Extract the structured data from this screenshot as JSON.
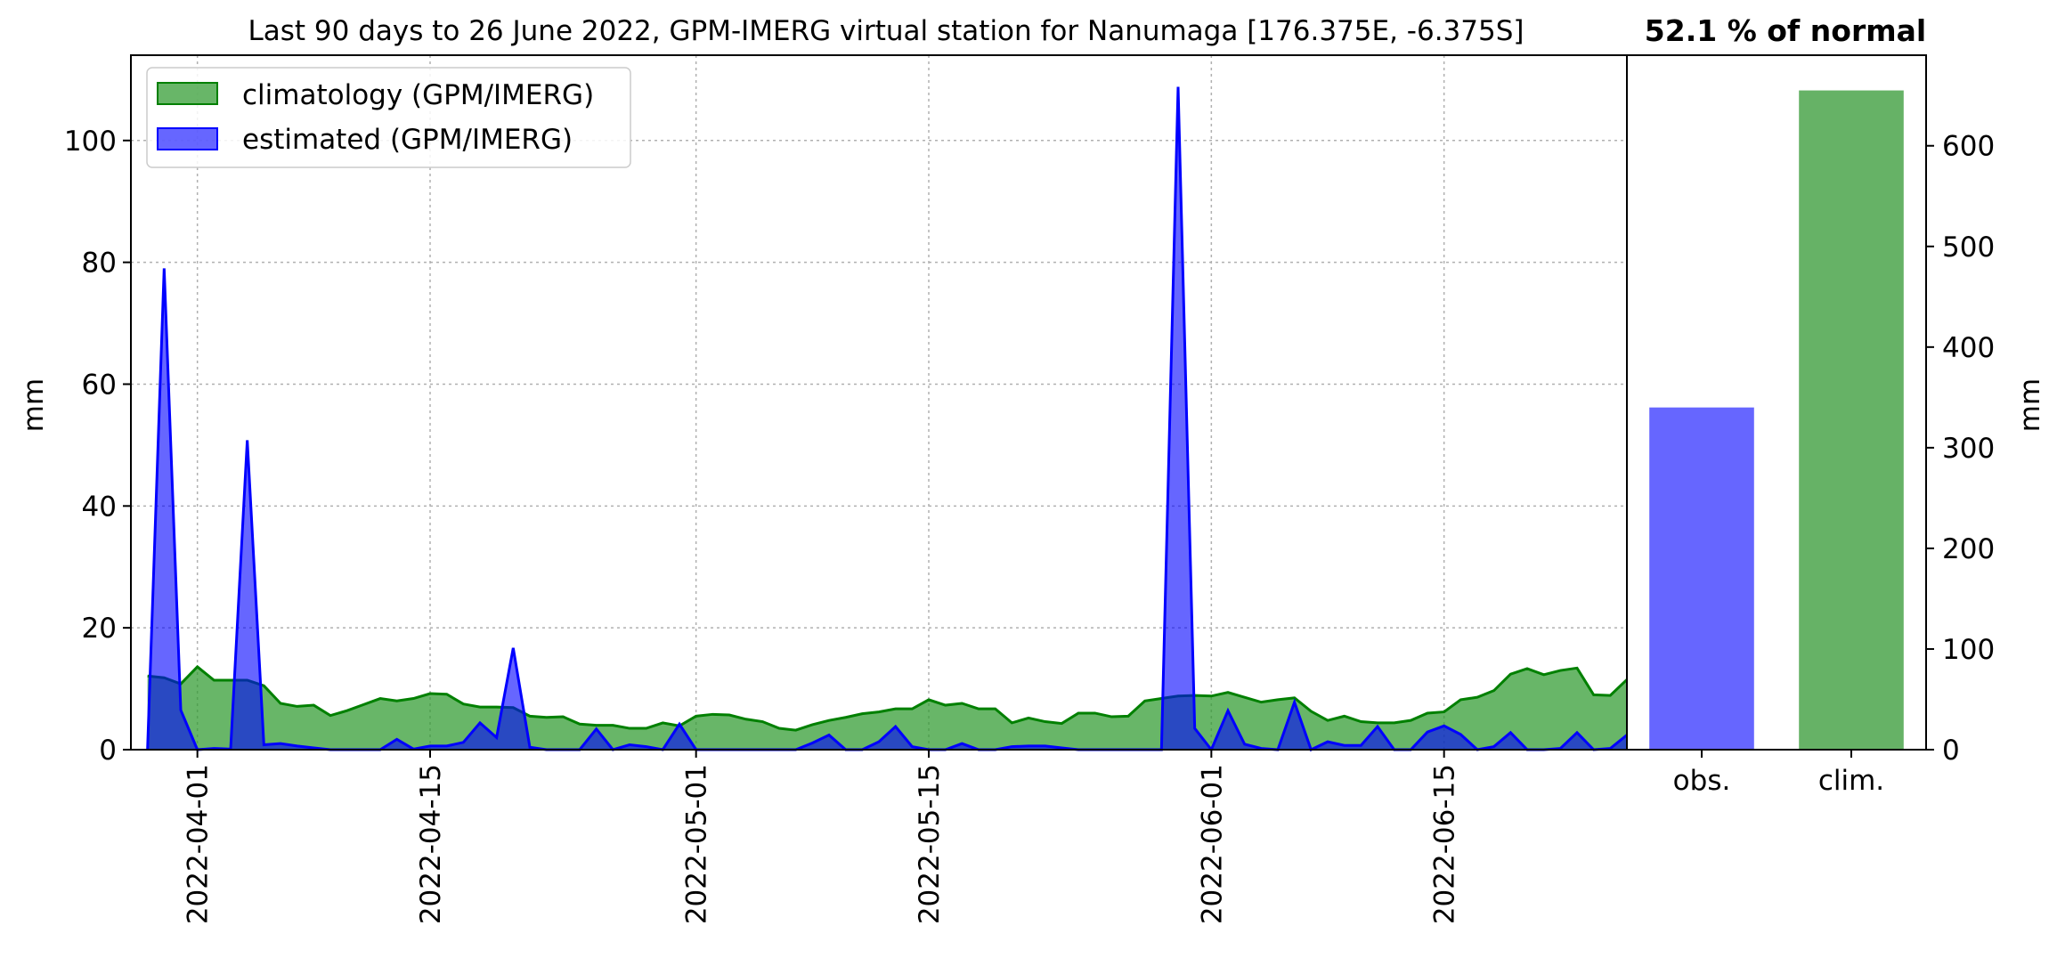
{
  "figure": {
    "title": "Last 90 days to 26 June 2022, GPM-IMERG virtual station for Nanumaga [176.375E, -6.375S]",
    "pct_label": "52.1 % of normal",
    "left_ylabel": "mm",
    "right_ylabel": "mm"
  },
  "colors": {
    "climatology_fill": "#2e9a2e",
    "climatology_line": "#008000",
    "estimated_fill": "#0000ff",
    "estimated_line": "#0000ff",
    "obs_bar": "#6666ff",
    "clim_bar": "#66b266",
    "grid": "#b0b0b0"
  },
  "chart_data": [
    {
      "type": "area",
      "xlabel": "",
      "ylabel": "mm",
      "ylim": [
        0,
        114
      ],
      "yticks": [
        0,
        20,
        40,
        60,
        80,
        100
      ],
      "x_start": "2022-03-29",
      "x_end": "2022-06-26",
      "x_range": [
        "2022-03-28",
        "2022-06-26"
      ],
      "xticks": [
        "2022-04-01",
        "2022-04-15",
        "2022-05-01",
        "2022-05-15",
        "2022-06-01",
        "2022-06-15"
      ],
      "grid": true,
      "legend_position": "top-left",
      "series": [
        {
          "name": "climatology (GPM/IMERG)",
          "values": [
            12.1,
            11.8,
            10.8,
            13.6,
            11.4,
            11.4,
            11.4,
            10.5,
            7.6,
            7.1,
            7.3,
            5.6,
            6.4,
            7.4,
            8.4,
            8.0,
            8.4,
            9.2,
            9.1,
            7.5,
            7.0,
            7.0,
            6.9,
            5.5,
            5.3,
            5.4,
            4.2,
            4.0,
            4.0,
            3.5,
            3.5,
            4.4,
            3.9,
            5.5,
            5.8,
            5.7,
            5.0,
            4.6,
            3.5,
            3.2,
            4.1,
            4.8,
            5.3,
            5.9,
            6.2,
            6.7,
            6.7,
            8.2,
            7.3,
            7.6,
            6.7,
            6.7,
            4.4,
            5.2,
            4.6,
            4.3,
            6.0,
            6.0,
            5.4,
            5.5,
            8.0,
            8.4,
            8.8,
            8.9,
            8.8,
            9.4,
            8.6,
            7.8,
            8.2,
            8.5,
            6.3,
            4.8,
            5.5,
            4.6,
            4.4,
            4.4,
            4.8,
            6.0,
            6.2,
            8.2,
            8.6,
            9.7,
            12.4,
            13.3,
            12.3,
            13.0,
            13.4,
            9.0,
            8.9,
            11.5
          ]
        },
        {
          "name": "estimated (GPM/IMERG)",
          "values": [
            0.0,
            79.0,
            6.5,
            0.0,
            0.2,
            0.1,
            50.8,
            0.8,
            1.0,
            0.6,
            0.3,
            0.0,
            0.0,
            0.0,
            0.0,
            1.7,
            0.1,
            0.6,
            0.6,
            1.2,
            4.4,
            2.0,
            16.7,
            0.4,
            0.0,
            0.0,
            0.0,
            3.4,
            0.0,
            0.8,
            0.5,
            0.0,
            4.2,
            0.0,
            0.0,
            0.0,
            0.0,
            0.0,
            0.0,
            0.0,
            1.1,
            2.4,
            0.0,
            0.0,
            1.3,
            3.8,
            0.5,
            0.0,
            0.0,
            1.0,
            0.0,
            0.0,
            0.5,
            0.6,
            0.6,
            0.3,
            0.0,
            0.0,
            0.0,
            0.0,
            0.0,
            0.0,
            108.8,
            3.5,
            0.0,
            6.4,
            0.9,
            0.2,
            0.0,
            7.8,
            0.0,
            1.3,
            0.7,
            0.7,
            3.8,
            0.0,
            0.0,
            2.9,
            3.9,
            2.5,
            0.0,
            0.5,
            2.8,
            0.0,
            0.0,
            0.2,
            2.8,
            0.0,
            0.2,
            2.4
          ]
        }
      ]
    },
    {
      "type": "bar",
      "categories": [
        "obs.",
        "clim."
      ],
      "values": [
        340,
        655
      ],
      "ylabel": "mm",
      "ylim": [
        0,
        690
      ],
      "yticks": [
        0,
        100,
        200,
        300,
        400,
        500,
        600
      ],
      "grid": false
    }
  ]
}
